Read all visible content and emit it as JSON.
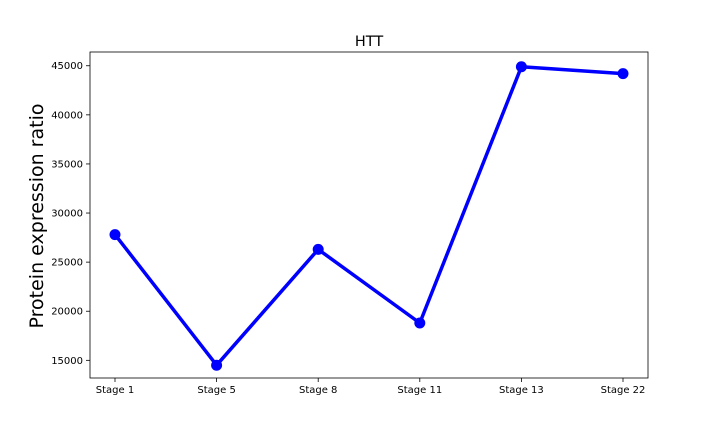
{
  "chart_data": {
    "type": "line",
    "title": "HTT",
    "xlabel": "",
    "ylabel": "Protein expression ratio",
    "categories": [
      "Stage 1",
      "Stage 5",
      "Stage 8",
      "Stage 11",
      "Stage 13",
      "Stage 22"
    ],
    "series": [
      {
        "values": [
          27800,
          14500,
          26300,
          18800,
          44900,
          44200
        ],
        "color": "#0000ff"
      }
    ],
    "ylim": [
      13200,
      46400
    ],
    "yticks": [
      15000,
      20000,
      25000,
      30000,
      35000,
      40000,
      45000
    ],
    "grid": false,
    "legend": "none"
  }
}
